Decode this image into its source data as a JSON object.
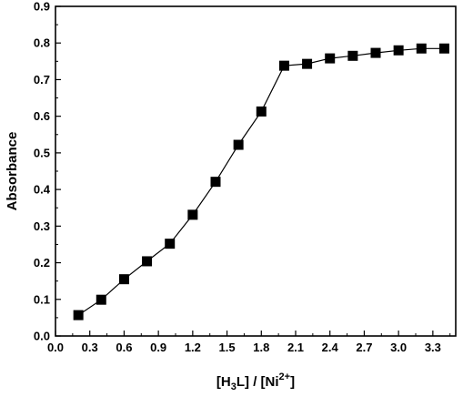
{
  "chart_data": {
    "type": "line",
    "title": "",
    "xlabel_parts": {
      "open": "[H",
      "sub": "3",
      "mid": "L] / [Ni",
      "sup": "2+",
      "close": "]"
    },
    "ylabel": "Absorbance",
    "xlim": [
      0.0,
      3.5
    ],
    "ylim": [
      0.0,
      0.9
    ],
    "x_ticks": [
      "0.0",
      "0.3",
      "0.6",
      "0.9",
      "1.2",
      "1.5",
      "1.8",
      "2.1",
      "2.4",
      "2.7",
      "3.0",
      "3.3"
    ],
    "y_ticks": [
      "0.0",
      "0.1",
      "0.2",
      "0.3",
      "0.4",
      "0.5",
      "0.6",
      "0.7",
      "0.8",
      "0.9"
    ],
    "grid": false,
    "legend": "none",
    "marker": "square",
    "color": "#000000",
    "series": [
      {
        "x": [
          0.2,
          0.4,
          0.6,
          0.8,
          1.0,
          1.2,
          1.4,
          1.6,
          1.8,
          2.0,
          2.2,
          2.4,
          2.6,
          2.8,
          3.0,
          3.2,
          3.4
        ],
        "y": [
          0.057,
          0.099,
          0.155,
          0.204,
          0.252,
          0.331,
          0.421,
          0.522,
          0.613,
          0.738,
          0.743,
          0.758,
          0.765,
          0.773,
          0.78,
          0.785,
          0.785
        ]
      }
    ]
  }
}
